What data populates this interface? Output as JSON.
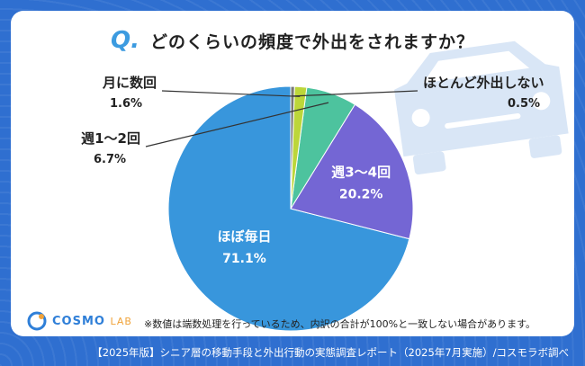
{
  "header": {
    "q_mark": "Q.",
    "title": "どのくらいの頻度で外出をされますか？"
  },
  "chart_data": {
    "type": "pie",
    "categories": [
      "ほぼ毎日",
      "週3〜4回",
      "週1〜2回",
      "月に数回",
      "ほとんど外出しない"
    ],
    "values": [
      71.1,
      20.2,
      6.7,
      1.6,
      0.5
    ],
    "display_values": [
      "71.1%",
      "20.2%",
      "6.7%",
      "1.6%",
      "0.5%"
    ],
    "colors": [
      "#3896dc",
      "#7466d4",
      "#4dc39e",
      "#bcd63a",
      "#777777"
    ],
    "start": "12 o'clock",
    "direction": "counter-clockwise"
  },
  "note": "※数値は端数処理を行っているため、内訳の合計が100%と一致しない場合があります。",
  "footer": "【2025年版】シニア層の移動手段と外出行動の実態調査レポート（2025年7月実施）/コスモラボ調べ",
  "logo": {
    "main": "COSMO",
    "sub": "LAB"
  }
}
